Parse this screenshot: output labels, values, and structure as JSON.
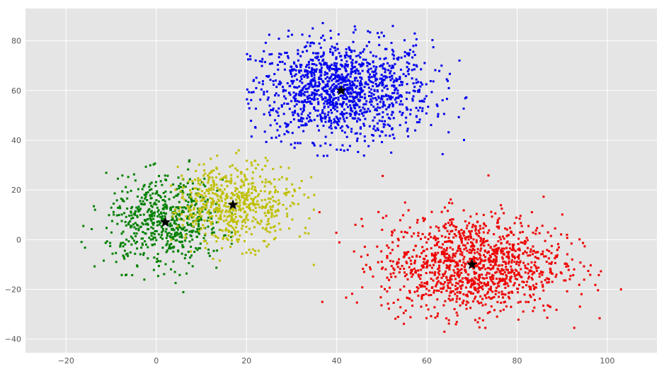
{
  "chart_data": {
    "type": "scatter",
    "title": "",
    "xlabel": "",
    "ylabel": "",
    "xlim": [
      -29,
      111
    ],
    "ylim": [
      -45.5,
      93
    ],
    "grid": true,
    "style": "ggplot",
    "x_ticks": [
      -20,
      0,
      20,
      40,
      60,
      80,
      100
    ],
    "y_ticks": [
      -40,
      -20,
      0,
      20,
      40,
      60,
      80
    ],
    "x_tick_labels": [
      "−20",
      "0",
      "20",
      "40",
      "60",
      "80",
      "100"
    ],
    "y_tick_labels": [
      "−40",
      "−20",
      "0",
      "20",
      "40",
      "60",
      "80"
    ],
    "colors": {
      "background": "#e5e5e5",
      "grid": "#ffffff",
      "tick_text": "#555555",
      "centroid": "#000000"
    },
    "clusters": [
      {
        "color": "#0000ee",
        "center": [
          41,
          60
        ],
        "spread": [
          10,
          10
        ],
        "count": 1300,
        "xrange": [
          20,
          70
        ],
        "yrange": [
          32,
          88
        ]
      },
      {
        "color": "#ee0000",
        "center": [
          70,
          -10
        ],
        "spread": [
          10,
          10
        ],
        "count": 1250,
        "xrange": [
          35,
          105
        ],
        "yrange": [
          -39,
          27
        ]
      },
      {
        "color": "#008000",
        "center": [
          2,
          7
        ],
        "spread": [
          6.5,
          9
        ],
        "count": 600,
        "xrange": [
          -23,
          17
        ],
        "yrange": [
          -22,
          32
        ]
      },
      {
        "color": "#bfbf00",
        "center": [
          17,
          14
        ],
        "spread": [
          7,
          8
        ],
        "count": 600,
        "xrange": [
          3,
          45
        ],
        "yrange": [
          -16,
          40
        ]
      }
    ],
    "centroids": [
      {
        "x": 41,
        "y": 60
      },
      {
        "x": 70,
        "y": -10
      },
      {
        "x": 2,
        "y": 7
      },
      {
        "x": 17,
        "y": 14
      }
    ]
  }
}
